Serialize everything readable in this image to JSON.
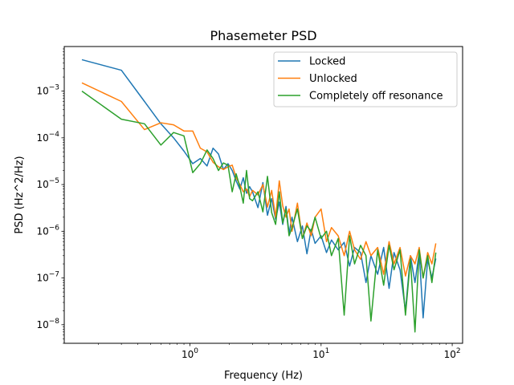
{
  "chart_data": {
    "type": "line",
    "title": "Phasemeter PSD",
    "xlabel": "Frequency (Hz)",
    "ylabel": "PSD (Hz^2/Hz)",
    "xscale": "log",
    "yscale": "log",
    "xlim": [
      0.11,
      120
    ],
    "ylim": [
      4e-09,
      0.009
    ],
    "xticks": [
      {
        "value": 1,
        "base": "10",
        "exp": "0"
      },
      {
        "value": 10,
        "base": "10",
        "exp": "1"
      },
      {
        "value": 100,
        "base": "10",
        "exp": "2"
      }
    ],
    "yticks": [
      {
        "value": 1e-08,
        "base": "10",
        "exp": "−8"
      },
      {
        "value": 1e-07,
        "base": "10",
        "exp": "−7"
      },
      {
        "value": 1e-06,
        "base": "10",
        "exp": "−6"
      },
      {
        "value": 1e-05,
        "base": "10",
        "exp": "−5"
      },
      {
        "value": 0.0001,
        "base": "10",
        "exp": "−4"
      },
      {
        "value": 0.001,
        "base": "10",
        "exp": "−3"
      }
    ],
    "grid": false,
    "legend_position": "top-right",
    "series": [
      {
        "name": "Locked",
        "color": "#1f77b4",
        "x": [
          0.15,
          0.3,
          0.45,
          0.6,
          0.75,
          0.9,
          1.05,
          1.2,
          1.35,
          1.5,
          1.65,
          1.8,
          1.95,
          2.1,
          2.25,
          2.4,
          2.55,
          2.7,
          2.85,
          3.0,
          3.3,
          3.6,
          3.9,
          4.2,
          4.5,
          4.8,
          5.1,
          5.4,
          5.7,
          6.0,
          6.6,
          7.2,
          7.8,
          8.4,
          9.0,
          10.0,
          11.0,
          12.0,
          13.5,
          15.0,
          16.5,
          18.0,
          20.0,
          22.0,
          24.0,
          27.0,
          30.0,
          33.0,
          36.0,
          40.0,
          44.0,
          48.0,
          52.0,
          56.0,
          60.0,
          65.0,
          70.0,
          75.0
        ],
        "y": [
          0.0047,
          0.0028,
          0.0006,
          0.0002,
          0.0001,
          5.2e-05,
          2.8e-05,
          3.6e-05,
          2.5e-05,
          6e-05,
          4.5e-05,
          2.1e-05,
          2.8e-05,
          2e-05,
          1.2e-05,
          8e-06,
          1.4e-05,
          6.5e-06,
          9e-06,
          7e-06,
          3.2e-06,
          1.1e-05,
          2.2e-06,
          5e-06,
          1.8e-06,
          4.2e-06,
          1.4e-06,
          3.4e-06,
          9e-07,
          2e-06,
          6e-07,
          1.3e-06,
          3.3e-07,
          1.1e-06,
          5.5e-07,
          8e-07,
          3.5e-07,
          6.5e-07,
          4e-07,
          5.8e-07,
          1.8e-07,
          4.5e-07,
          3.5e-07,
          8e-08,
          3e-07,
          1.2e-07,
          4.5e-07,
          6e-08,
          3.5e-07,
          1.5e-07,
          2e-08,
          3e-07,
          8e-08,
          3.5e-07,
          1.4e-08,
          2.5e-07,
          1e-07,
          2.6e-07
        ]
      },
      {
        "name": "Unlocked",
        "color": "#ff7f0e",
        "x": [
          0.15,
          0.3,
          0.45,
          0.6,
          0.75,
          0.9,
          1.05,
          1.2,
          1.35,
          1.5,
          1.65,
          1.8,
          1.95,
          2.1,
          2.25,
          2.4,
          2.55,
          2.7,
          2.85,
          3.0,
          3.3,
          3.6,
          3.9,
          4.2,
          4.5,
          4.8,
          5.1,
          5.4,
          5.7,
          6.0,
          6.6,
          7.2,
          7.8,
          8.4,
          9.0,
          10.0,
          11.0,
          12.0,
          13.5,
          15.0,
          16.5,
          18.0,
          20.0,
          22.0,
          24.0,
          27.0,
          30.0,
          33.0,
          36.0,
          40.0,
          44.0,
          48.0,
          52.0,
          56.0,
          60.0,
          65.0,
          70.0,
          75.0
        ],
        "y": [
          0.0015,
          0.0006,
          0.00015,
          0.00021,
          0.00019,
          0.00014,
          0.00014,
          6e-05,
          5e-05,
          3e-05,
          2.4e-05,
          2.1e-05,
          2.4e-05,
          2.6e-05,
          1.4e-05,
          1e-05,
          7e-06,
          8e-06,
          5.5e-06,
          7.5e-06,
          6e-06,
          1e-05,
          3.3e-06,
          7.5e-06,
          2e-06,
          1.2e-05,
          3.5e-06,
          2e-06,
          3e-06,
          1e-06,
          4e-06,
          7e-07,
          1.5e-06,
          8e-07,
          2e-06,
          3e-06,
          6e-07,
          1.2e-06,
          8e-07,
          3e-07,
          1e-06,
          4e-07,
          2.5e-07,
          6e-07,
          3e-07,
          4.5e-07,
          1.2e-07,
          6e-07,
          2e-07,
          4.5e-07,
          1.1e-07,
          3e-07,
          2e-07,
          4.5e-07,
          1e-07,
          3.5e-07,
          2e-07,
          5.5e-07
        ]
      },
      {
        "name": "Completely off resonance",
        "color": "#2ca02c",
        "x": [
          0.15,
          0.3,
          0.45,
          0.6,
          0.75,
          0.9,
          1.05,
          1.2,
          1.35,
          1.5,
          1.65,
          1.8,
          1.95,
          2.1,
          2.25,
          2.4,
          2.55,
          2.7,
          2.85,
          3.0,
          3.3,
          3.6,
          3.9,
          4.2,
          4.5,
          4.8,
          5.1,
          5.4,
          5.7,
          6.0,
          6.6,
          7.2,
          7.8,
          8.4,
          9.0,
          10.0,
          11.0,
          12.0,
          13.5,
          15.0,
          16.5,
          18.0,
          20.0,
          22.0,
          24.0,
          27.0,
          30.0,
          33.0,
          36.0,
          40.0,
          44.0,
          48.0,
          52.0,
          56.0,
          60.0,
          65.0,
          70.0,
          75.0
        ],
        "y": [
          0.001,
          0.00025,
          0.0002,
          7e-05,
          0.00013,
          0.00011,
          1.8e-05,
          2.8e-05,
          5.5e-05,
          3.6e-05,
          2e-05,
          2.9e-05,
          2.6e-05,
          7e-06,
          1.7e-05,
          9e-06,
          4e-06,
          2e-05,
          5e-06,
          4.5e-06,
          7e-06,
          2.6e-06,
          1.5e-05,
          2.5e-06,
          1.4e-06,
          7e-06,
          1.5e-06,
          3e-06,
          8e-07,
          1.2e-06,
          3e-06,
          7e-07,
          1.3e-06,
          1e-06,
          2e-06,
          7e-07,
          1e-06,
          3e-07,
          7e-07,
          1.6e-08,
          8e-07,
          2e-07,
          5e-07,
          3e-07,
          1.2e-08,
          4e-07,
          7e-08,
          5e-07,
          1.5e-07,
          4e-07,
          1.6e-08,
          2.5e-07,
          7e-09,
          4e-07,
          1e-07,
          3e-07,
          8e-08,
          3.5e-07
        ]
      }
    ]
  }
}
